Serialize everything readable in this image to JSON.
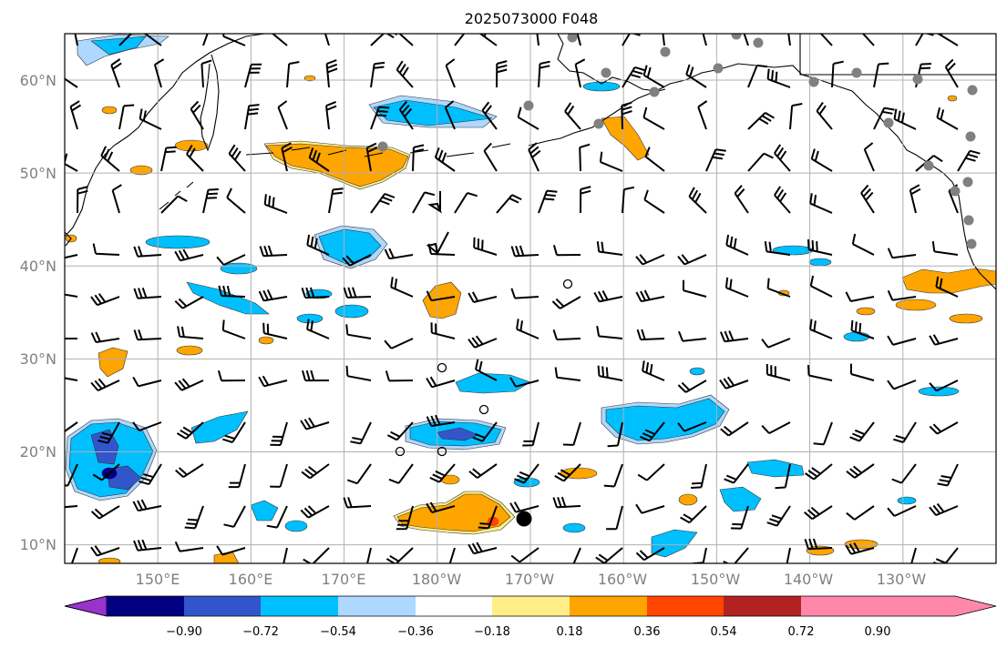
{
  "title": "2025073000 F048",
  "lat_labels": [
    "60°N",
    "50°N",
    "40°N",
    "30°N",
    "20°N",
    "10°N"
  ],
  "lon_labels": [
    "150°E",
    "160°E",
    "170°E",
    "180°W",
    "170°W",
    "160°W",
    "150°W",
    "140°W",
    "130°W"
  ],
  "colorbar": {
    "tick_labels": [
      "−0.90",
      "−0.72",
      "−0.54",
      "−0.36",
      "−0.18",
      "0.18",
      "0.36",
      "0.54",
      "0.72",
      "0.90"
    ],
    "colors": [
      "#9933cc",
      "#000080",
      "#3355cc",
      "#00bfff",
      "#add8ff",
      "#ffffff",
      "#ffee88",
      "#ffa500",
      "#ff4500",
      "#b22222",
      "#ff88aa"
    ]
  },
  "map": {
    "projection": "PlateCarree",
    "extent_lon": [
      140,
      240
    ],
    "extent_lat": [
      8,
      65
    ],
    "gridlines": true,
    "coastlines": true,
    "field_colors": {
      "neg_light": "#add8ff",
      "neg": "#00bfff",
      "neg_strong": "#3355cc",
      "pos_light": "#ffee88",
      "pos": "#ffa500",
      "pos_strong": "#ff4500"
    },
    "station_color": "#808080",
    "storm_marker_color": "#000000"
  }
}
